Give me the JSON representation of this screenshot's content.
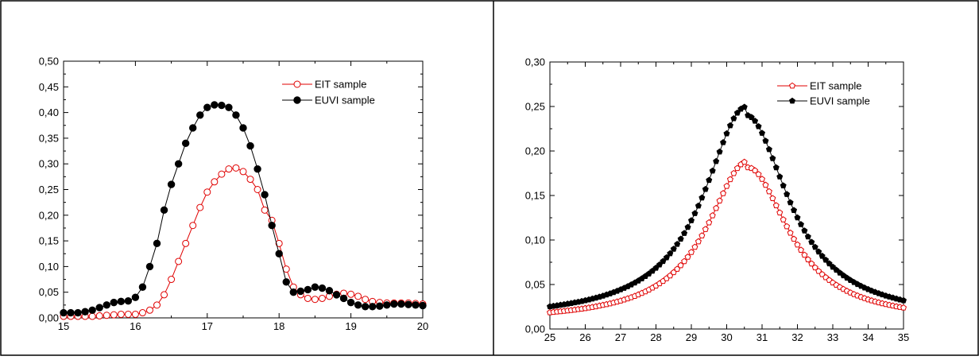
{
  "chart_data": [
    {
      "type": "line",
      "title": "",
      "xlabel": "",
      "ylabel": "",
      "xlim": [
        15,
        20
      ],
      "ylim": [
        0,
        0.5
      ],
      "xticks": [
        "15",
        "16",
        "17",
        "18",
        "19",
        "20"
      ],
      "yticks": [
        "0,00",
        "0,05",
        "0,10",
        "0,15",
        "0,20",
        "0,25",
        "0,30",
        "0,35",
        "0,40",
        "0,45",
        "0,50"
      ],
      "legend_position": "top-right",
      "series": [
        {
          "name": "EIT sample",
          "color": "#e00000",
          "marker": "open-circle",
          "x": [
            15.0,
            15.1,
            15.2,
            15.3,
            15.4,
            15.5,
            15.6,
            15.7,
            15.8,
            15.9,
            16.0,
            16.1,
            16.2,
            16.3,
            16.4,
            16.5,
            16.6,
            16.7,
            16.8,
            16.9,
            17.0,
            17.1,
            17.2,
            17.3,
            17.4,
            17.5,
            17.6,
            17.7,
            17.8,
            17.9,
            18.0,
            18.1,
            18.2,
            18.3,
            18.4,
            18.5,
            18.6,
            18.7,
            18.8,
            18.9,
            19.0,
            19.1,
            19.2,
            19.3,
            19.4,
            19.5,
            19.6,
            19.7,
            19.8,
            19.9,
            20.0
          ],
          "y": [
            0.003,
            0.003,
            0.003,
            0.003,
            0.003,
            0.004,
            0.005,
            0.006,
            0.007,
            0.007,
            0.007,
            0.01,
            0.015,
            0.025,
            0.045,
            0.075,
            0.11,
            0.145,
            0.18,
            0.215,
            0.245,
            0.265,
            0.28,
            0.29,
            0.292,
            0.285,
            0.27,
            0.25,
            0.21,
            0.19,
            0.145,
            0.095,
            0.06,
            0.045,
            0.038,
            0.036,
            0.038,
            0.042,
            0.046,
            0.048,
            0.046,
            0.042,
            0.036,
            0.032,
            0.03,
            0.029,
            0.029,
            0.029,
            0.029,
            0.028,
            0.027
          ]
        },
        {
          "name": "EUVI sample",
          "color": "#000000",
          "marker": "filled-circle",
          "x": [
            15.0,
            15.1,
            15.2,
            15.3,
            15.4,
            15.5,
            15.6,
            15.7,
            15.8,
            15.9,
            16.0,
            16.1,
            16.2,
            16.3,
            16.4,
            16.5,
            16.6,
            16.7,
            16.8,
            16.9,
            17.0,
            17.1,
            17.2,
            17.3,
            17.4,
            17.5,
            17.6,
            17.7,
            17.8,
            17.9,
            18.0,
            18.1,
            18.2,
            18.3,
            18.4,
            18.5,
            18.6,
            18.7,
            18.8,
            18.9,
            19.0,
            19.1,
            19.2,
            19.3,
            19.4,
            19.5,
            19.6,
            19.7,
            19.8,
            19.9,
            20.0
          ],
          "y": [
            0.01,
            0.01,
            0.01,
            0.012,
            0.015,
            0.02,
            0.025,
            0.03,
            0.032,
            0.033,
            0.04,
            0.06,
            0.1,
            0.145,
            0.21,
            0.26,
            0.3,
            0.34,
            0.37,
            0.395,
            0.41,
            0.415,
            0.414,
            0.41,
            0.395,
            0.37,
            0.335,
            0.29,
            0.24,
            0.18,
            0.125,
            0.07,
            0.05,
            0.052,
            0.055,
            0.06,
            0.058,
            0.053,
            0.045,
            0.038,
            0.03,
            0.025,
            0.022,
            0.022,
            0.023,
            0.025,
            0.027,
            0.027,
            0.026,
            0.025,
            0.024
          ]
        }
      ]
    },
    {
      "type": "line",
      "title": "",
      "xlabel": "",
      "ylabel": "",
      "xlim": [
        25,
        35
      ],
      "ylim": [
        0,
        0.3
      ],
      "xticks": [
        "25",
        "26",
        "27",
        "28",
        "29",
        "30",
        "31",
        "32",
        "33",
        "34",
        "35"
      ],
      "yticks": [
        "0,00",
        "0,05",
        "0,10",
        "0,15",
        "0,20",
        "0,25",
        "0,30"
      ],
      "legend_position": "top-right",
      "peak": {
        "EIT sample": {
          "x": 30.6,
          "y": 0.185,
          "gamma": 1.4
        },
        "EUVI sample": {
          "x": 30.55,
          "y": 0.245,
          "gamma": 1.45
        }
      },
      "series": [
        {
          "name": "EIT sample",
          "color": "#e00000",
          "marker": "open-pentagon"
        },
        {
          "name": "EUVI sample",
          "color": "#000000",
          "marker": "filled-pentagon"
        }
      ]
    }
  ]
}
